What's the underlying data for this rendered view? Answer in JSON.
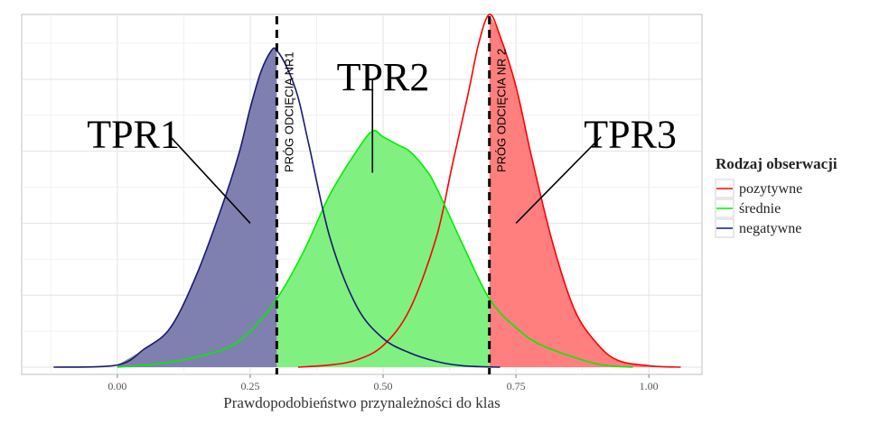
{
  "chart_data": {
    "type": "area",
    "xlabel": "Prawdopodobieństwo przynależności do klas",
    "ylabel": "",
    "xlim": [
      -0.18,
      1.1
    ],
    "ylim": [
      -0.1,
      4.9
    ],
    "x_ticks": [
      "0.00",
      "0.25",
      "0.50",
      "0.75",
      "1.00"
    ],
    "x_tick_values": [
      0,
      0.25,
      0.5,
      0.75,
      1.0
    ],
    "grid": true,
    "legend": {
      "title": "Rodzaj obserwacji",
      "placement": "right",
      "entries": [
        {
          "label": "pozytywne",
          "color": "#ff0000"
        },
        {
          "label": "średnie",
          "color": "#00ee00"
        },
        {
          "label": "negatywne",
          "color": "#191970"
        }
      ]
    },
    "series": [
      {
        "name": "pozytywne",
        "color": "#ff0000",
        "fill": "#ff7f7f",
        "shaded_range": [
          0.7,
          1.06
        ],
        "x": [
          0.34,
          0.4,
          0.45,
          0.5,
          0.55,
          0.6,
          0.63,
          0.66,
          0.68,
          0.7,
          0.72,
          0.75,
          0.78,
          0.82,
          0.86,
          0.9,
          0.94,
          1.0,
          1.06
        ],
        "y": [
          0.0,
          0.03,
          0.1,
          0.3,
          0.8,
          1.8,
          2.8,
          3.8,
          4.5,
          4.9,
          4.6,
          3.9,
          2.9,
          1.7,
          0.8,
          0.35,
          0.1,
          0.02,
          0.0
        ]
      },
      {
        "name": "średnie",
        "color": "#00ee00",
        "fill": "#80f080",
        "shaded_range": [
          0.3,
          0.7
        ],
        "x": [
          0.0,
          0.1,
          0.2,
          0.25,
          0.3,
          0.35,
          0.4,
          0.45,
          0.48,
          0.5,
          0.53,
          0.55,
          0.58,
          0.6,
          0.65,
          0.7,
          0.75,
          0.8,
          0.9,
          0.97
        ],
        "y": [
          0.0,
          0.07,
          0.25,
          0.5,
          0.95,
          1.6,
          2.4,
          3.0,
          3.28,
          3.2,
          3.08,
          3.0,
          2.75,
          2.5,
          1.7,
          0.95,
          0.55,
          0.3,
          0.05,
          0.0
        ]
      },
      {
        "name": "negatywne",
        "color": "#191970",
        "fill": "#8080b0",
        "shaded_range": [
          0.0,
          0.3
        ],
        "x": [
          -0.12,
          0.0,
          0.05,
          0.1,
          0.15,
          0.2,
          0.23,
          0.25,
          0.27,
          0.29,
          0.3,
          0.32,
          0.34,
          0.36,
          0.4,
          0.45,
          0.5,
          0.55,
          0.6,
          0.65,
          0.72
        ],
        "y": [
          0.0,
          0.03,
          0.25,
          0.55,
          1.3,
          2.3,
          3.0,
          3.6,
          4.1,
          4.4,
          4.4,
          4.15,
          3.75,
          3.1,
          1.8,
          0.85,
          0.4,
          0.2,
          0.08,
          0.02,
          0.0
        ]
      }
    ],
    "cutoffs": [
      {
        "x": 0.3,
        "label": "PRÓG ODCIĘCIA NR1"
      },
      {
        "x": 0.7,
        "label": "PRÓG ODCIĘCIA NR 2"
      }
    ],
    "annotations": [
      {
        "text": "TPR1",
        "text_x": 0.03,
        "text_y": 3.05,
        "line_from": [
          0.1,
          3.2
        ],
        "arrow_to": [
          0.25,
          2.0
        ]
      },
      {
        "text": "TPR2",
        "text_x": 0.5,
        "text_y": 3.85,
        "line_from": [
          0.48,
          4.0
        ],
        "arrow_to": [
          0.48,
          2.7
        ]
      },
      {
        "text": "TPR3",
        "text_x": 0.965,
        "text_y": 3.05,
        "line_from": [
          0.91,
          3.2
        ],
        "arrow_to": [
          0.75,
          2.0
        ]
      }
    ]
  }
}
